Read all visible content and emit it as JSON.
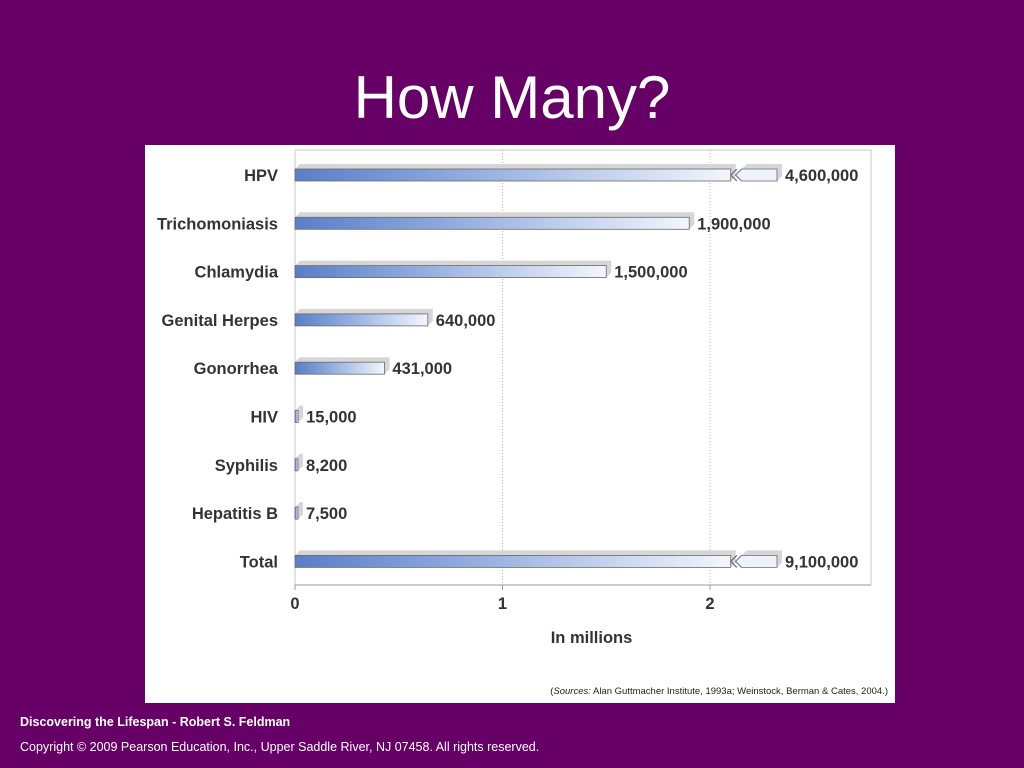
{
  "slide": {
    "title": "How Many?"
  },
  "footer": {
    "book": "Discovering the Lifespan - Robert S. Feldman",
    "copyright": "Copyright © 2009 Pearson Education, Inc., Upper Saddle River, NJ  07458.  All rights reserved."
  },
  "colors": {
    "background": "#660066",
    "bar_dark": "#5b7ec8",
    "bar_light": "#ffffff"
  },
  "chart_data": {
    "type": "bar",
    "orientation": "horizontal",
    "categories": [
      "HPV",
      "Trichomoniasis",
      "Chlamydia",
      "Genital Herpes",
      "Gonorrhea",
      "HIV",
      "Syphilis",
      "Hepatitis B",
      "Total"
    ],
    "values": [
      4600000,
      1900000,
      1500000,
      640000,
      431000,
      15000,
      8200,
      7500,
      9100000
    ],
    "value_labels": [
      "4,600,000",
      "1,900,000",
      "1,500,000",
      "640,000",
      "431,000",
      "15,000",
      "8,200",
      "7,500",
      "9,100,000"
    ],
    "axis_broken": [
      true,
      false,
      false,
      false,
      false,
      false,
      false,
      false,
      true
    ],
    "xlabel": "In millions",
    "x_ticks": [
      0,
      1,
      2
    ],
    "xlim": [
      0,
      2.75
    ],
    "grid": "vertical",
    "source_prefix": "(",
    "source_label": "Sources:",
    "source_text": " Alan Guttmacher Institute, 1993a; Weinstock, Berman & Cates, 2004.)"
  }
}
